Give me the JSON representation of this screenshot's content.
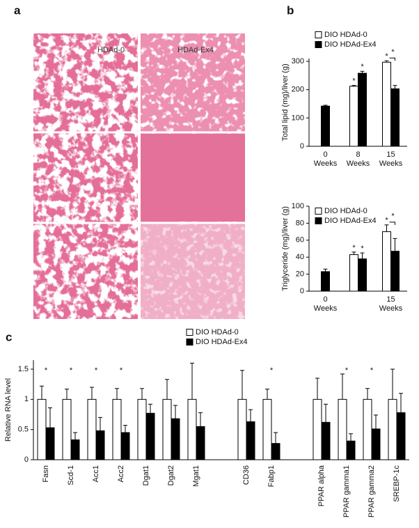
{
  "panel_labels": [
    "a",
    "b",
    "c"
  ],
  "images": {
    "column_labels": [
      "HDAd-0",
      "HDAd-Ex4"
    ]
  },
  "chart_data": [
    {
      "type": "bar",
      "y_label": "Total lipid (mg)/liver (g)",
      "categories": [
        "0 Weeks",
        "8 Weeks",
        "15 Weeks"
      ],
      "series": [
        {
          "name": "DIO HDAd-0",
          "color": "#ffffff",
          "values": [
            null,
            212,
            297
          ],
          "errors": [
            null,
            3,
            5
          ],
          "markers": [
            null,
            "*",
            "*"
          ]
        },
        {
          "name": "DIO HDAd-Ex4",
          "color": "#000000",
          "values": [
            142,
            258,
            203
          ],
          "errors": [
            3,
            7,
            12
          ],
          "markers": [
            null,
            "*",
            null
          ]
        }
      ],
      "brackets": [
        {
          "category": "15 Weeks",
          "text": "*"
        }
      ],
      "ylim": [
        0,
        310
      ],
      "yticks": [
        0,
        100,
        200,
        300
      ],
      "legend": "top-left"
    },
    {
      "type": "bar",
      "y_label": "Triglyceride (mg)/liver (g)",
      "categories": [
        "0 Weeks",
        null,
        "15 Weeks"
      ],
      "series": [
        {
          "name": "DIO HDAd-0",
          "color": "#ffffff",
          "values": [
            null,
            43,
            70
          ],
          "errors": [
            null,
            3,
            8
          ],
          "markers": [
            null,
            "*",
            "*"
          ]
        },
        {
          "name": "DIO HDAd-Ex4",
          "color": "#000000",
          "values": [
            23,
            38,
            47
          ],
          "errors": [
            3,
            7,
            15
          ],
          "markers": [
            null,
            "*",
            null
          ]
        }
      ],
      "brackets": [
        {
          "category": "15 Weeks",
          "text": "*"
        }
      ],
      "ylim": [
        0,
        100
      ],
      "yticks": [
        0,
        20,
        40,
        60,
        80,
        100
      ],
      "legend": "top-left"
    },
    {
      "type": "bar",
      "y_label": "Relative RNA level",
      "categories": [
        "Fasn",
        "Scd-1",
        "Acc1",
        "Acc2",
        "Dgat1",
        "Dgat2",
        "Mgat1",
        null,
        "CD36",
        "Fabp1",
        null,
        "PPAR alpha",
        "PPAR gamma1",
        "PPAR gamma2",
        "SREBP-1c"
      ],
      "series": [
        {
          "name": "DIO HDAd-0",
          "color": "#ffffff",
          "values": [
            1,
            1,
            1,
            1,
            1,
            1,
            1,
            null,
            1,
            1,
            null,
            1,
            1,
            1,
            1
          ],
          "errors": [
            0.22,
            0.17,
            0.2,
            0.18,
            0.18,
            0.33,
            0.6,
            null,
            0.48,
            0.17,
            null,
            0.35,
            0.42,
            0.18,
            0.5
          ]
        },
        {
          "name": "DIO HDAd-Ex4",
          "color": "#000000",
          "values": [
            0.53,
            0.33,
            0.48,
            0.45,
            0.77,
            0.68,
            0.55,
            null,
            0.63,
            0.27,
            null,
            0.62,
            0.31,
            0.51,
            0.78
          ],
          "errors": [
            0.33,
            0.12,
            0.22,
            0.12,
            0.15,
            0.22,
            0.23,
            null,
            0.2,
            0.18,
            null,
            0.3,
            0.12,
            0.23,
            0.32
          ]
        }
      ],
      "markers": [
        "*",
        "*",
        "*",
        "*",
        null,
        null,
        null,
        null,
        null,
        "*",
        null,
        null,
        "*",
        "*",
        null
      ],
      "ylim": [
        0,
        1.65
      ],
      "yticks": [
        0,
        0.5,
        1,
        1.5
      ],
      "legend": "top"
    }
  ]
}
